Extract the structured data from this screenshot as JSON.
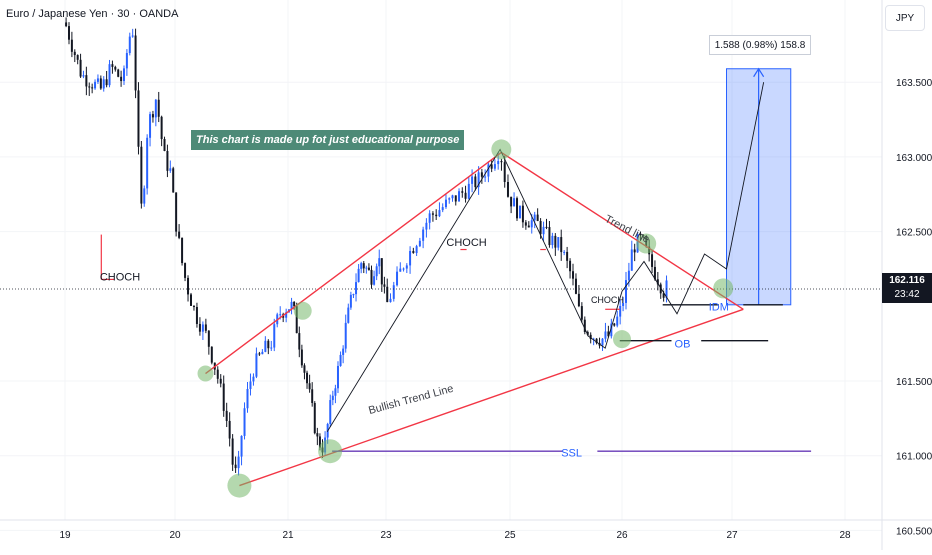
{
  "header": {
    "symbol_title": "Euro / Japanese Yen · 30 · OANDA",
    "currency": "JPY"
  },
  "current_price": {
    "value": "162.116",
    "countdown": "23:42"
  },
  "measure_label": "1.588 (0.98%) 158.8",
  "educational_note": "This chart is made up fot just educational purpose",
  "colors": {
    "bull": "#2962ff",
    "bear": "#131722",
    "trendline": "#f23645",
    "ssl_line": "#673ab7",
    "zone_fill": "#2962ff",
    "circle": "#76b86b"
  },
  "chart_data": {
    "type": "candlestick",
    "instrument": "EUR/JPY",
    "timeframe": "30",
    "ylim": [
      160.45,
      164.0
    ],
    "y_ticks": [
      "163.500",
      "163.000",
      "162.500",
      "161.500",
      "161.000",
      "160.500"
    ],
    "x_ticks": [
      "19",
      "20",
      "21",
      "23",
      "25",
      "26",
      "27",
      "28"
    ],
    "price_path": [
      [
        0,
        163.9
      ],
      [
        0.15,
        163.55
      ],
      [
        0.33,
        163.45
      ],
      [
        0.42,
        163.6
      ],
      [
        0.53,
        163.5
      ],
      [
        0.58,
        163.8
      ],
      [
        0.62,
        163.85
      ],
      [
        0.68,
        162.8
      ],
      [
        0.7,
        162.6
      ],
      [
        0.75,
        163.2
      ],
      [
        0.83,
        163.4
      ],
      [
        0.9,
        163.0
      ],
      [
        0.96,
        162.9
      ],
      [
        1.0,
        162.6
      ],
      [
        1.06,
        162.3
      ],
      [
        1.1,
        162.15
      ],
      [
        1.18,
        161.95
      ],
      [
        1.28,
        161.8
      ],
      [
        1.37,
        161.55
      ],
      [
        1.43,
        161.35
      ],
      [
        1.5,
        161.05
      ],
      [
        1.52,
        160.85
      ],
      [
        1.57,
        160.95
      ],
      [
        1.6,
        161.25
      ],
      [
        1.65,
        161.45
      ],
      [
        1.7,
        161.6
      ],
      [
        1.78,
        161.7
      ],
      [
        1.85,
        161.75
      ],
      [
        1.92,
        161.95
      ],
      [
        2.0,
        162.0
      ],
      [
        2.05,
        162.0
      ],
      [
        2.13,
        161.7
      ],
      [
        2.22,
        161.4
      ],
      [
        2.3,
        161.1
      ],
      [
        2.37,
        161.05
      ],
      [
        2.45,
        161.4
      ],
      [
        2.52,
        161.6
      ],
      [
        2.6,
        161.9
      ],
      [
        2.68,
        162.15
      ],
      [
        2.75,
        162.3
      ],
      [
        2.85,
        162.2
      ],
      [
        2.92,
        162.35
      ],
      [
        3.0,
        162.0
      ],
      [
        3.15,
        162.3
      ],
      [
        3.35,
        162.6
      ],
      [
        3.6,
        162.75
      ],
      [
        3.75,
        162.85
      ],
      [
        3.92,
        163.05
      ],
      [
        3.98,
        162.75
      ],
      [
        4.1,
        162.6
      ],
      [
        4.25,
        162.55
      ],
      [
        4.35,
        162.45
      ],
      [
        4.45,
        162.4
      ],
      [
        4.55,
        162.2
      ],
      [
        4.62,
        161.95
      ],
      [
        4.68,
        161.85
      ],
      [
        4.75,
        161.8
      ],
      [
        4.82,
        161.78
      ],
      [
        4.88,
        161.8
      ],
      [
        4.95,
        161.9
      ],
      [
        5.0,
        162.0
      ],
      [
        5.05,
        162.2
      ],
      [
        5.1,
        162.4
      ],
      [
        5.18,
        162.45
      ],
      [
        5.25,
        162.3
      ],
      [
        5.32,
        162.2
      ],
      [
        5.38,
        162.1
      ],
      [
        5.43,
        162.15
      ]
    ],
    "annotations": [
      {
        "label": "CHOCH",
        "x": 0.5,
        "y": 162.2
      },
      {
        "label": "CHOCH",
        "x": 3.65,
        "y": 162.43
      },
      {
        "label": "CHOCH",
        "x": 4.87,
        "y": 162.05
      },
      {
        "label": "Trend line",
        "x": 5.05,
        "y": 162.52
      },
      {
        "label": "Bullish Trend Line",
        "x": 3.2,
        "y": 161.38
      },
      {
        "label": "IDM",
        "x": 5.88,
        "y": 162.0
      },
      {
        "label": "OB",
        "x": 5.55,
        "y": 161.75
      },
      {
        "label": "SSL",
        "x": 4.55,
        "y": 161.02
      }
    ],
    "levels": {
      "ssl": 161.03,
      "ob": 161.77,
      "idm": 162.01,
      "target": 163.59,
      "current": 162.116
    },
    "grid": true
  }
}
